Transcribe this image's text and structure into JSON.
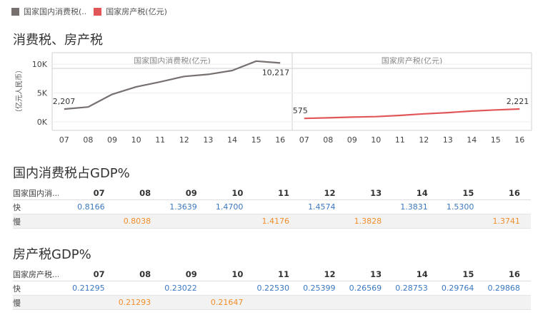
{
  "legend": [
    {
      "label": "国家国内消费税(..",
      "color": "#76706f"
    },
    {
      "label": "国家房产税(亿元)",
      "color": "#e15759"
    }
  ],
  "section1_title": "消费税、房产税",
  "section2_title": "国内消费税占GDP%",
  "section3_title": "房产税GDP%",
  "chart_data": {
    "type": "line",
    "ylabel": "（亿元人民币）",
    "ylim": [
      -1500,
      12000
    ],
    "yticks": [
      {
        "value": 0,
        "label": "0K"
      },
      {
        "value": 5000,
        "label": "5K"
      },
      {
        "value": 10000,
        "label": "10K"
      }
    ],
    "categories": [
      "07",
      "08",
      "09",
      "10",
      "11",
      "12",
      "13",
      "14",
      "15",
      "16"
    ],
    "series": [
      {
        "name": "国家国内消费税(亿元)",
        "color": "#76706f",
        "values": [
          2207,
          2568,
          4761,
          6072,
          6936,
          7876,
          8231,
          8907,
          10542,
          10217
        ],
        "start_label": "2,207",
        "end_label": "10,217"
      },
      {
        "name": "国家房产税(亿元)",
        "color": "#e15759",
        "values": [
          575,
          680,
          804,
          894,
          1102,
          1372,
          1582,
          1852,
          2051,
          2221
        ],
        "start_label": "575",
        "end_label": "2,221"
      }
    ]
  },
  "table1": {
    "label": "国家国内消...",
    "years": [
      "07",
      "08",
      "09",
      "10",
      "11",
      "12",
      "13",
      "14",
      "15",
      "16"
    ],
    "rows": [
      {
        "label": "快",
        "cells": [
          "0.8166",
          "",
          "1.3639",
          "1.4700",
          "",
          "1.4574",
          "",
          "1.3831",
          "1.5300",
          ""
        ]
      },
      {
        "label": "慢",
        "cells": [
          "",
          "0.8038",
          "",
          "",
          "1.4176",
          "",
          "1.3828",
          "",
          "",
          "1.3741"
        ]
      }
    ]
  },
  "table2": {
    "label": "国家房产税...",
    "years": [
      "07",
      "08",
      "09",
      "10",
      "11",
      "12",
      "13",
      "14",
      "15",
      "16"
    ],
    "rows": [
      {
        "label": "快",
        "cells": [
          "0.21295",
          "",
          "0.23022",
          "",
          "0.22530",
          "0.25399",
          "0.26569",
          "0.28753",
          "0.29764",
          "0.29868"
        ]
      },
      {
        "label": "慢",
        "cells": [
          "",
          "0.21293",
          "",
          "0.21647",
          "",
          "",
          "",
          "",
          "",
          ""
        ]
      }
    ]
  }
}
